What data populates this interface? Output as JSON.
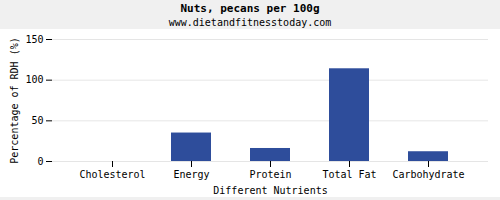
{
  "chart_data": {
    "type": "bar",
    "title": "Nuts, pecans per 100g",
    "subtitle": "www.dietandfitnesstoday.com",
    "xlabel": "Different Nutrients",
    "ylabel": "Percentage of RDH (%)",
    "categories": [
      "Cholesterol",
      "Energy",
      "Protein",
      "Total Fat",
      "Carbohydrate"
    ],
    "values": [
      0,
      35,
      16,
      114,
      12
    ],
    "color": "#2e4d9b",
    "ylim": [
      0,
      150
    ],
    "yticks": [
      0,
      50,
      100,
      150
    ],
    "grid": true
  }
}
